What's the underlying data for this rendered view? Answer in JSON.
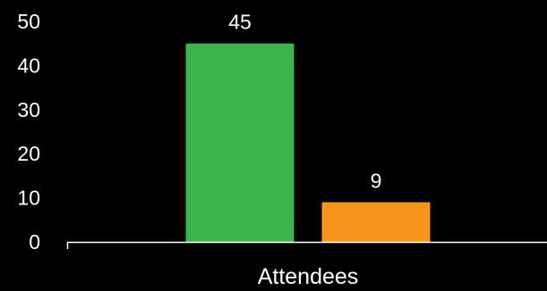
{
  "chart_data": {
    "type": "bar",
    "categories": [
      "Attendees"
    ],
    "series": [
      {
        "values": [
          45
        ],
        "color": "#39b54a"
      },
      {
        "values": [
          9
        ],
        "color": "#f7941d"
      }
    ],
    "data_labels": [
      "45",
      "9"
    ],
    "ylim": [
      0,
      50
    ],
    "yticks": [
      0,
      10,
      20,
      30,
      40,
      50
    ],
    "ytick_labels": [
      "0",
      "10",
      "20",
      "30",
      "40",
      "50"
    ],
    "grid": false,
    "background": "#000000",
    "text_color": "#ffffff",
    "axis_color": "#ffffff"
  }
}
